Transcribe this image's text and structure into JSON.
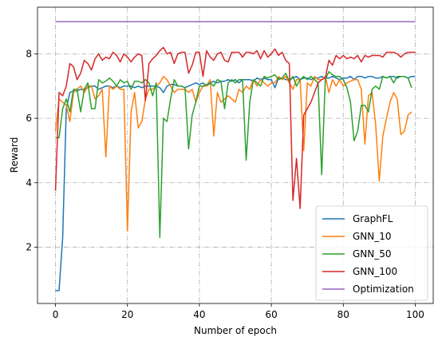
{
  "chart_data": {
    "type": "line",
    "title": "",
    "xlabel": "Number of epoch",
    "ylabel": "Reward",
    "xlim": [
      -5,
      105
    ],
    "ylim": [
      0.25,
      9.45
    ],
    "xticks": [
      0,
      20,
      40,
      60,
      80,
      100
    ],
    "yticks": [
      2,
      4,
      6,
      8
    ],
    "grid": true,
    "legend_position": "lower-right",
    "series": [
      {
        "name": "GraphFL",
        "color": "#1f77b4",
        "values": [
          0.65,
          0.65,
          2.3,
          6.3,
          6.8,
          6.85,
          6.85,
          6.9,
          6.9,
          6.95,
          7.0,
          7.0,
          6.9,
          6.95,
          7.0,
          7.0,
          6.95,
          7.0,
          6.95,
          7.0,
          7.0,
          7.0,
          6.95,
          7.0,
          6.95,
          7.0,
          7.0,
          7.0,
          7.0,
          6.95,
          6.8,
          7.0,
          7.05,
          7.05,
          7.0,
          7.0,
          6.95,
          7.0,
          7.05,
          7.1,
          7.05,
          7.1,
          7.0,
          7.1,
          7.15,
          7.1,
          7.15,
          7.15,
          7.2,
          7.15,
          7.2,
          7.1,
          7.2,
          7.2,
          7.2,
          7.15,
          7.25,
          7.2,
          7.25,
          7.2,
          7.2,
          6.95,
          7.25,
          7.25,
          7.2,
          7.2,
          7.25,
          7.3,
          7.2,
          7.25,
          7.25,
          7.2,
          7.25,
          7.25,
          7.3,
          7.25,
          7.25,
          7.3,
          7.25,
          7.2,
          7.25,
          7.25,
          7.3,
          7.2,
          7.3,
          7.3,
          7.25,
          7.3,
          7.3,
          7.25,
          7.25,
          7.3,
          7.25,
          7.3,
          7.3,
          7.25,
          7.3,
          7.3,
          7.25,
          7.3,
          7.3
        ]
      },
      {
        "name": "GNN_10",
        "color": "#ff7f0e",
        "values": [
          5.6,
          6.6,
          6.5,
          6.4,
          5.9,
          6.8,
          6.9,
          7.0,
          6.8,
          7.0,
          7.0,
          6.6,
          6.7,
          6.9,
          4.8,
          7.0,
          6.9,
          7.0,
          6.9,
          6.9,
          2.5,
          6.2,
          6.8,
          5.7,
          5.9,
          6.6,
          6.9,
          6.9,
          7.0,
          7.1,
          7.3,
          7.2,
          7.0,
          6.8,
          6.9,
          6.9,
          6.9,
          6.8,
          6.9,
          6.5,
          6.8,
          7.0,
          7.0,
          7.2,
          5.45,
          6.8,
          6.5,
          6.6,
          6.7,
          6.6,
          6.5,
          6.9,
          6.8,
          7.0,
          6.9,
          7.2,
          7.0,
          7.2,
          7.1,
          7.0,
          7.1,
          7.1,
          7.3,
          7.2,
          7.3,
          7.1,
          6.9,
          7.2,
          7.2,
          5.0,
          7.1,
          7.0,
          7.3,
          7.2,
          7.2,
          7.3,
          6.8,
          7.2,
          7.0,
          7.2,
          7.0,
          7.1,
          7.15,
          7.2,
          7.2,
          6.9,
          5.2,
          6.7,
          6.8,
          5.8,
          4.05,
          5.45,
          6.0,
          6.5,
          6.8,
          6.6,
          5.5,
          5.6,
          6.1,
          6.2
        ]
      },
      {
        "name": "GNN_50",
        "color": "#2ca02c",
        "values": [
          5.4,
          5.4,
          6.3,
          6.6,
          6.2,
          6.9,
          6.9,
          6.2,
          6.9,
          7.1,
          6.3,
          6.3,
          7.2,
          7.1,
          7.15,
          7.25,
          7.15,
          7.0,
          7.2,
          7.1,
          7.15,
          6.9,
          7.15,
          7.15,
          7.1,
          7.2,
          7.1,
          6.7,
          7.1,
          2.3,
          6.0,
          5.9,
          6.6,
          7.2,
          7.0,
          7.0,
          6.95,
          5.05,
          6.1,
          6.5,
          7.0,
          7.0,
          7.05,
          7.1,
          7.0,
          7.2,
          7.15,
          6.3,
          7.1,
          7.2,
          7.1,
          7.2,
          7.2,
          4.7,
          6.5,
          7.2,
          7.1,
          7.0,
          7.3,
          7.25,
          7.3,
          7.35,
          7.2,
          7.25,
          7.4,
          7.15,
          7.3,
          7.0,
          7.2,
          7.3,
          7.2,
          7.3,
          7.2,
          7.1,
          4.25,
          7.2,
          7.45,
          7.35,
          7.3,
          7.3,
          7.2,
          6.95,
          6.5,
          5.3,
          5.6,
          6.4,
          6.4,
          6.2,
          6.9,
          7.0,
          6.9,
          7.3,
          7.25,
          7.3,
          7.1,
          7.3,
          7.3,
          7.3,
          7.25,
          6.95
        ]
      },
      {
        "name": "GNN_100",
        "color": "#d62728",
        "values": [
          3.75,
          6.8,
          6.7,
          7.0,
          7.7,
          7.6,
          7.2,
          7.4,
          7.8,
          7.7,
          7.5,
          7.85,
          8.0,
          7.8,
          7.9,
          7.85,
          8.05,
          7.95,
          7.75,
          8.0,
          7.9,
          7.75,
          7.9,
          8.0,
          7.95,
          6.55,
          7.7,
          7.85,
          7.95,
          8.1,
          8.2,
          8.0,
          8.05,
          7.7,
          8.0,
          8.05,
          8.05,
          7.4,
          7.65,
          8.05,
          8.05,
          7.3,
          8.1,
          7.9,
          7.8,
          8.0,
          8.05,
          7.8,
          7.75,
          8.05,
          8.05,
          8.05,
          7.9,
          8.05,
          8.05,
          8.0,
          8.1,
          7.85,
          8.1,
          7.9,
          8.0,
          8.15,
          7.95,
          8.05,
          7.8,
          7.7,
          3.45,
          4.75,
          3.2,
          6.1,
          6.3,
          6.5,
          6.8,
          7.1,
          7.2,
          7.25,
          7.8,
          7.65,
          7.95,
          7.85,
          7.95,
          7.85,
          7.9,
          7.85,
          7.95,
          7.75,
          7.95,
          7.9,
          7.95,
          7.95,
          7.95,
          7.9,
          8.05,
          8.05,
          8.05,
          8.0,
          7.9,
          8.0,
          8.05,
          8.05,
          8.05
        ]
      },
      {
        "name": "Optimization",
        "color": "#9467bd",
        "values": [
          9.0,
          9.0,
          9.0,
          9.0,
          9.0,
          9.0,
          9.0,
          9.0,
          9.0,
          9.0,
          9.0,
          9.0,
          9.0,
          9.0,
          9.0,
          9.0,
          9.0,
          9.0,
          9.0,
          9.0,
          9.0,
          9.0,
          9.0,
          9.0,
          9.0,
          9.0,
          9.0,
          9.0,
          9.0,
          9.0,
          9.0,
          9.0,
          9.0,
          9.0,
          9.0,
          9.0,
          9.0,
          9.0,
          9.0,
          9.0,
          9.0,
          9.0,
          9.0,
          9.0,
          9.0,
          9.0,
          9.0,
          9.0,
          9.0,
          9.0,
          9.0,
          9.0,
          9.0,
          9.0,
          9.0,
          9.0,
          9.0,
          9.0,
          9.0,
          9.0,
          9.0,
          9.0,
          9.0,
          9.0,
          9.0,
          9.0,
          9.0,
          9.0,
          9.0,
          9.0,
          9.0,
          9.0,
          9.0,
          9.0,
          9.0,
          9.0,
          9.0,
          9.0,
          9.0,
          9.0,
          9.0,
          9.0,
          9.0,
          9.0,
          9.0,
          9.0,
          9.0,
          9.0,
          9.0,
          9.0,
          9.0,
          9.0,
          9.0,
          9.0,
          9.0,
          9.0,
          9.0,
          9.0,
          9.0,
          9.0,
          9.0
        ]
      }
    ]
  }
}
